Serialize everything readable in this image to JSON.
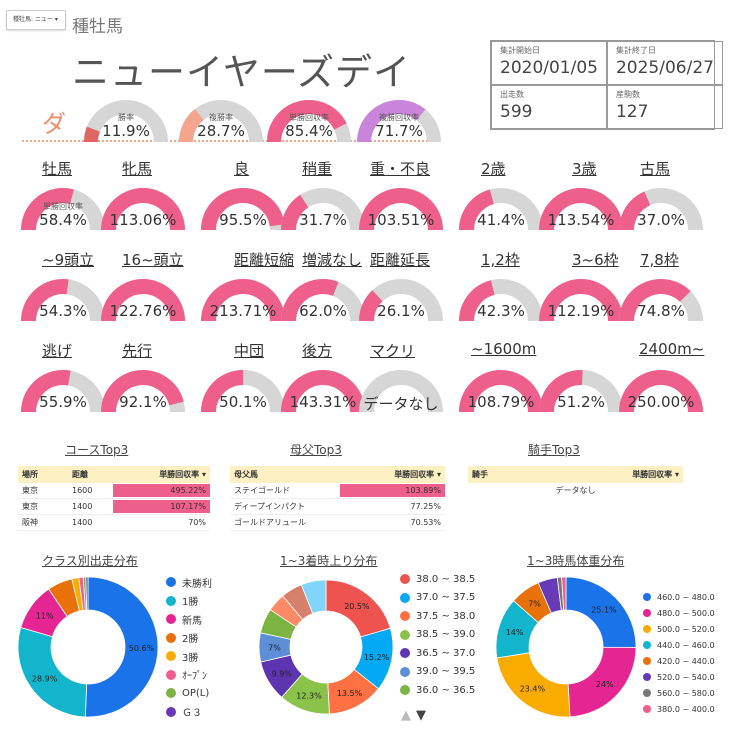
{
  "header": {
    "dropdown_label": "種牡馬: ニュー ▾",
    "section_title": "種牡馬",
    "horse_name": "ニューイヤーズデイ"
  },
  "info": {
    "start_label": "集計開始日",
    "start_value": "2020/01/05",
    "end_label": "集計終了日",
    "end_value": "2025/06/27",
    "runs_label": "出走数",
    "runs_value": "599",
    "foals_label": "産駒数",
    "foals_value": "127"
  },
  "surface_label": "ダ",
  "top_gauges": [
    {
      "label": "勝率",
      "value": "11.9%",
      "pct": 0.119,
      "color": "#e06666"
    },
    {
      "label": "複勝率",
      "value": "28.7%",
      "pct": 0.287,
      "color": "#f4a58d"
    },
    {
      "label": "単勝回収率",
      "value": "85.4%",
      "pct": 0.854,
      "color": "#ee5f8c"
    },
    {
      "label": "複勝回収率",
      "value": "71.7%",
      "pct": 0.717,
      "color": "#c985d9"
    }
  ],
  "gauge_sub_label": "単勝回収率",
  "rows": [
    {
      "items": [
        {
          "cat": "牡馬",
          "value": "58.4%",
          "pct": 0.584
        },
        {
          "cat": "牝馬",
          "value": "113.06%",
          "pct": 1.0
        },
        {
          "cat": "良",
          "value": "95.5%",
          "pct": 0.955
        },
        {
          "cat": "稍重",
          "value": "31.7%",
          "pct": 0.317
        },
        {
          "cat": "重・不良",
          "value": "103.51%",
          "pct": 1.0
        },
        {
          "cat": "2歳",
          "value": "41.4%",
          "pct": 0.414
        },
        {
          "cat": "3歳",
          "value": "113.54%",
          "pct": 1.0
        },
        {
          "cat": "古馬",
          "value": "37.0%",
          "pct": 0.37
        }
      ]
    },
    {
      "items": [
        {
          "cat": "~9頭立",
          "value": "54.3%",
          "pct": 0.543
        },
        {
          "cat": "16~頭立",
          "value": "122.76%",
          "pct": 1.0
        },
        {
          "cat": "距離短縮",
          "value": "213.71%",
          "pct": 1.0
        },
        {
          "cat": "増減なし",
          "value": "62.0%",
          "pct": 0.62
        },
        {
          "cat": "距離延長",
          "value": "26.1%",
          "pct": 0.261
        },
        {
          "cat": "1,2枠",
          "value": "42.3%",
          "pct": 0.423
        },
        {
          "cat": "3~6枠",
          "value": "112.19%",
          "pct": 1.0
        },
        {
          "cat": "7,8枠",
          "value": "74.8%",
          "pct": 0.748
        }
      ]
    },
    {
      "items": [
        {
          "cat": "逃げ",
          "value": "55.9%",
          "pct": 0.559
        },
        {
          "cat": "先行",
          "value": "92.1%",
          "pct": 0.921
        },
        {
          "cat": "中団",
          "value": "50.1%",
          "pct": 0.501
        },
        {
          "cat": "後方",
          "value": "143.31%",
          "pct": 1.0
        },
        {
          "cat": "マクリ",
          "value": "データなし",
          "pct": null
        },
        {
          "cat": "~1600m",
          "value": "108.79%",
          "pct": 1.0
        },
        {
          "cat": "",
          "value": "51.2%",
          "pct": 0.512
        },
        {
          "cat": "2400m~",
          "value": "250.00%",
          "pct": 1.0
        }
      ]
    }
  ],
  "tables": {
    "course": {
      "title": "コースTop3",
      "headers": [
        "場所",
        "距離",
        "単勝回収率 ▾"
      ],
      "rows": [
        {
          "place": "東京",
          "dist": "1600",
          "value": "495.22%",
          "pct": 1.0
        },
        {
          "place": "東京",
          "dist": "1400",
          "value": "107.17%",
          "pct": 0.35
        },
        {
          "place": "阪神",
          "dist": "1400",
          "value": "70%",
          "pct": 0
        }
      ]
    },
    "damsire": {
      "title": "母父Top3",
      "headers": [
        "母父馬",
        "単勝回収率 ▾"
      ],
      "rows": [
        {
          "name": "ステイゴールド",
          "value": "103.89%",
          "pct": 1.0
        },
        {
          "name": "ディープインパクト",
          "value": "77.25%",
          "pct": 0
        },
        {
          "name": "ゴールドアリュール",
          "value": "70.53%",
          "pct": 0
        }
      ]
    },
    "jockey": {
      "title": "騎手Top3",
      "headers": [
        "騎手",
        "単勝回収率 ▾"
      ],
      "empty_text": "データなし"
    }
  },
  "chart_data": [
    {
      "type": "pie",
      "title": "クラス別出走分布",
      "categories": [
        "未勝利",
        "1勝",
        "新馬",
        "2勝",
        "3勝",
        "ｵｰﾌﾟﾝ",
        "OP(L)",
        "Ｇ３"
      ],
      "values": [
        50.6,
        28.9,
        11.0,
        5.8,
        1.6,
        1.0,
        0.6,
        0.5
      ],
      "labels": [
        "50.6%",
        "28.9%",
        "11%",
        "",
        "",
        "",
        "",
        ""
      ],
      "colors": [
        "#1a73e8",
        "#12b5cb",
        "#e52592",
        "#e8710a",
        "#f9ab00",
        "#ee5f8c",
        "#7cb342",
        "#673ab7"
      ]
    },
    {
      "type": "pie",
      "title": "1~3着時上り分布",
      "categories": [
        "38.0 ~ 38.5",
        "37.0 ~ 37.5",
        "37.5 ~ 38.0",
        "38.5 ~ 39.0",
        "36.5 ~ 37.0",
        "39.0 ~ 39.5",
        "36.0 ~ 36.5",
        "",
        "",
        ""
      ],
      "values": [
        20.5,
        15.2,
        13.5,
        12.3,
        9.9,
        7.0,
        6.0,
        4.4,
        5.2,
        6.0
      ],
      "labels": [
        "20.5%",
        "15.2%",
        "13.5%",
        "12.3%",
        "9.9%",
        "7%",
        "",
        "",
        "",
        ""
      ],
      "colors": [
        "#ef5350",
        "#03a9f4",
        "#ff7043",
        "#8bc34a",
        "#5e35b1",
        "#5c8fd6",
        "#7cb342",
        "#ff8a65",
        "#d4806a",
        "#81d4fa"
      ]
    },
    {
      "type": "pie",
      "title": "1~3時馬体重分布",
      "categories": [
        "460.0 ~ 480.0",
        "480.0 ~ 500.0",
        "500.0 ~ 520.0",
        "440.0 ~ 460.0",
        "420.0 ~ 440.0",
        "520.0 ~ 540.0",
        "560.0 ~ 580.0",
        "380.0 ~ 400.0"
      ],
      "values": [
        25.1,
        24.0,
        23.4,
        14.0,
        7.0,
        4.5,
        1.0,
        1.0
      ],
      "labels": [
        "25.1%",
        "24%",
        "23.4%",
        "14%",
        "7%",
        "",
        "",
        ""
      ],
      "colors": [
        "#1a73e8",
        "#e52592",
        "#f9ab00",
        "#12b5cb",
        "#e8710a",
        "#673ab7",
        "#777777",
        "#ee5f8c"
      ]
    }
  ],
  "pager": {
    "up": "▲",
    "down": "▼"
  }
}
